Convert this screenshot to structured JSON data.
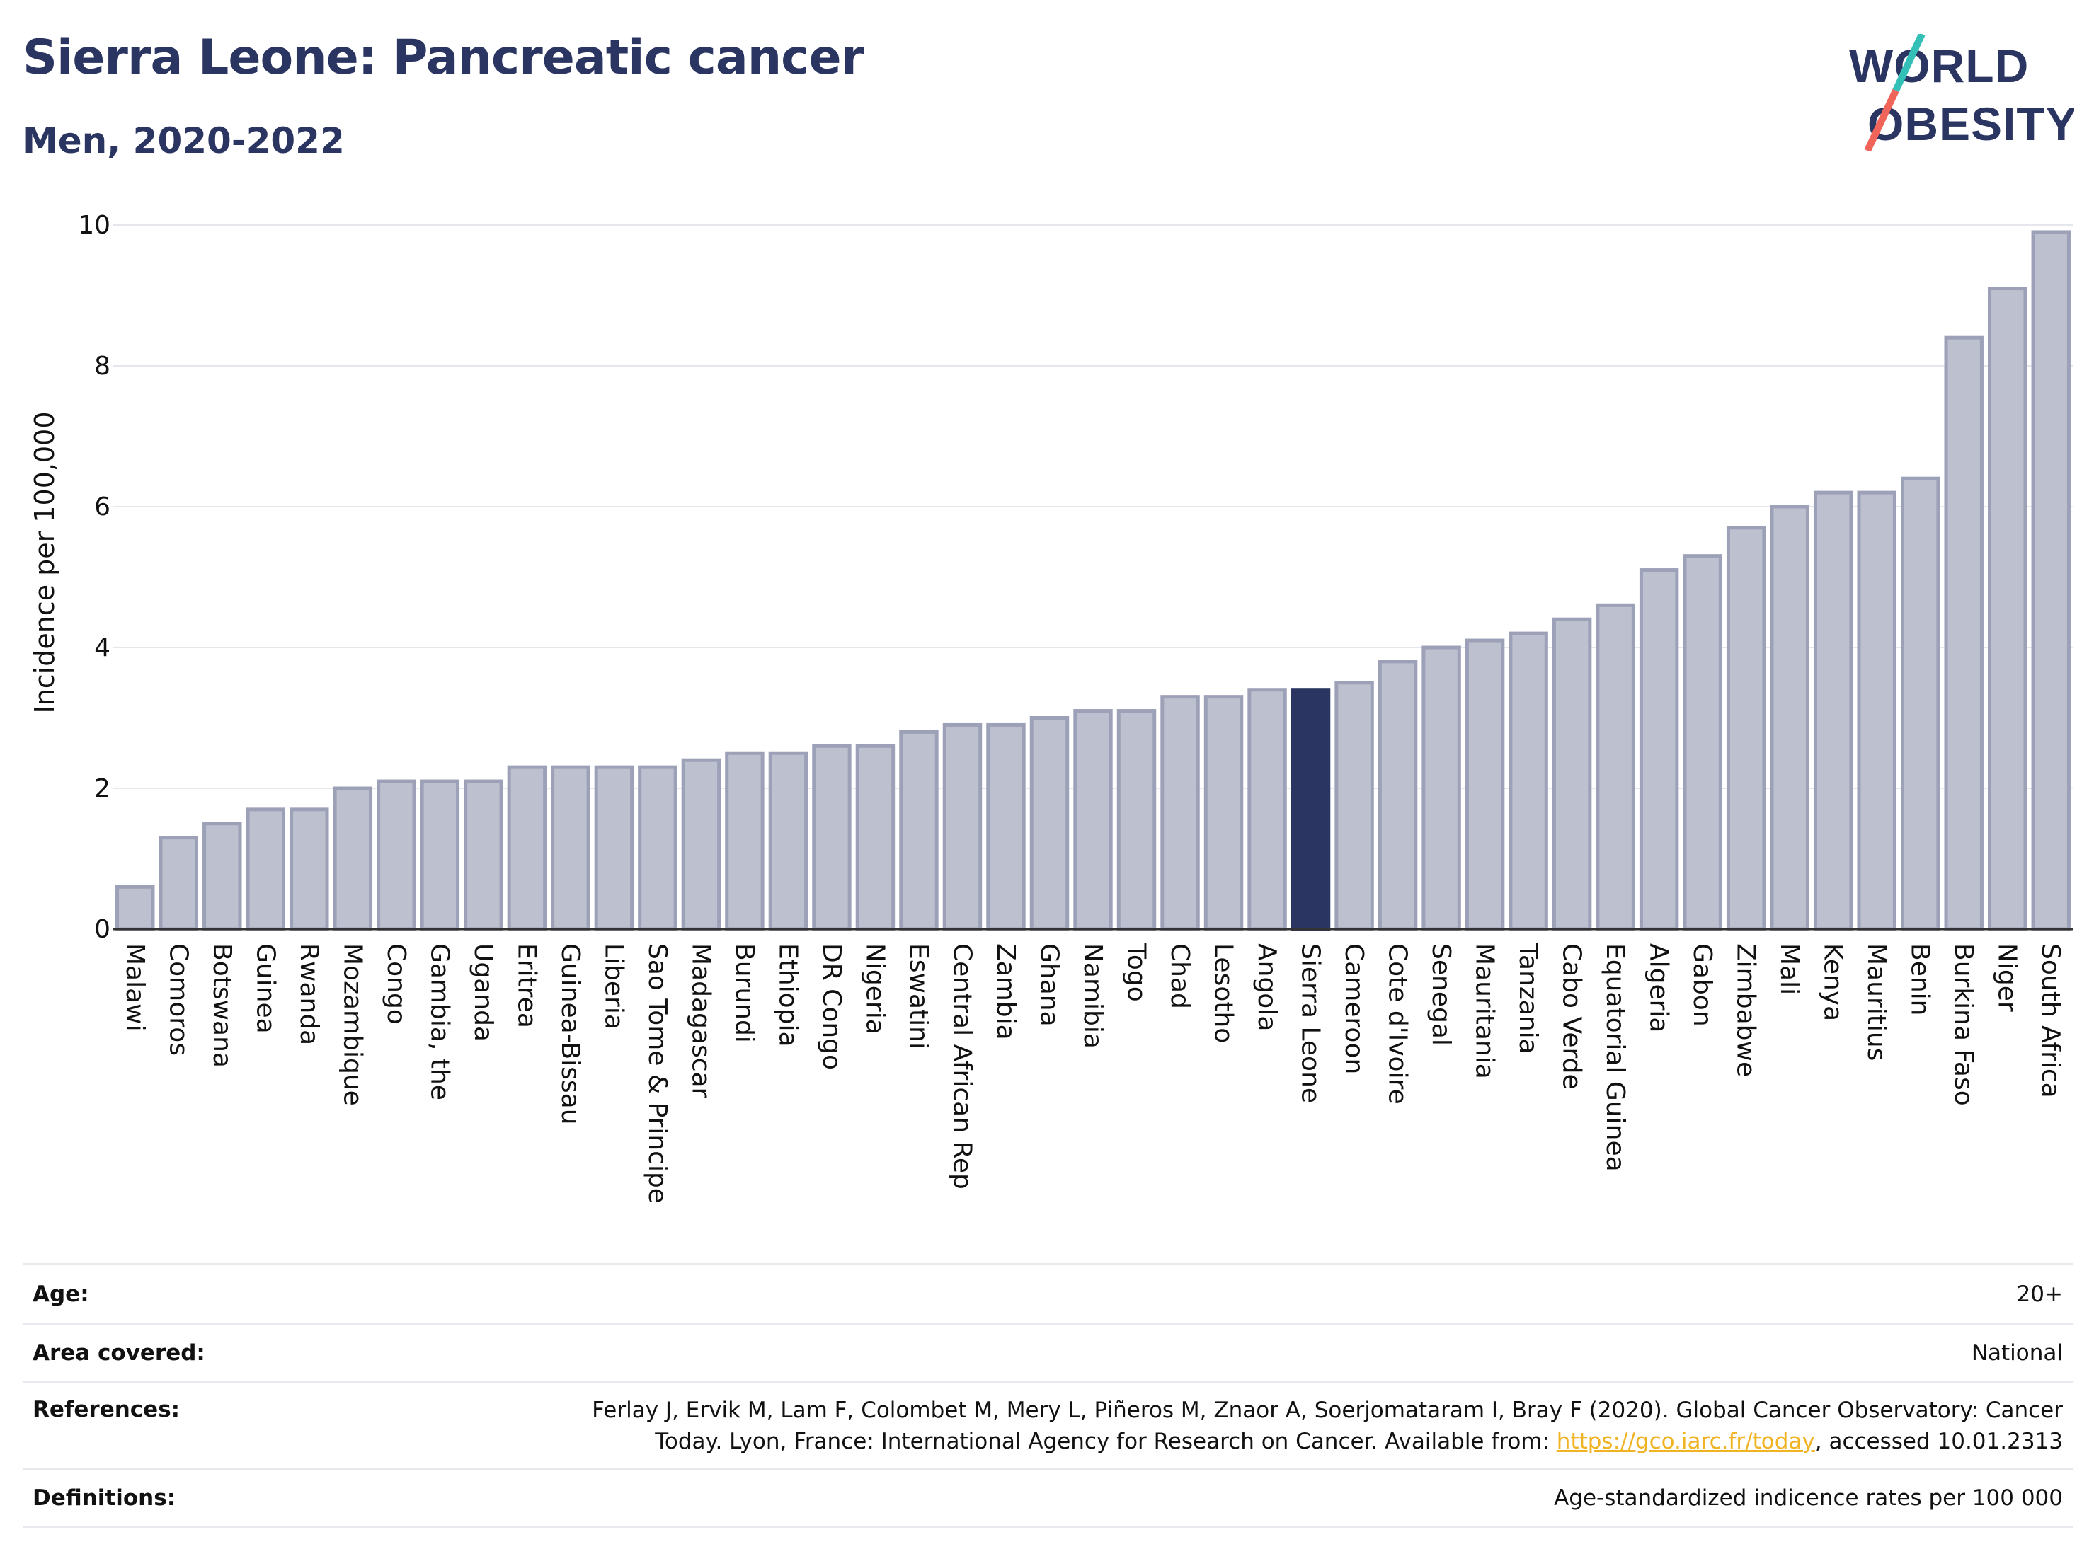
{
  "header": {
    "title": "Sierra Leone: Pancreatic cancer",
    "subtitle": "Men, 2020-2022"
  },
  "logo": {
    "line1": "WORLD",
    "line2": "OBESITY"
  },
  "colors": {
    "bar": "#bdc0cf",
    "bar_stroke": "#9da1b8",
    "highlight": "#2b3561",
    "title": "#2b3561",
    "grid": "#e6e7ec",
    "link": "#f0b323"
  },
  "chart_data": {
    "type": "bar",
    "ylabel": "Incidence per 100,000",
    "ylim": [
      0,
      10
    ],
    "yticks": [
      0,
      2,
      4,
      6,
      8,
      10
    ],
    "grid": true,
    "highlight": "Sierra Leone",
    "categories": [
      "Malawi",
      "Comoros",
      "Botswana",
      "Guinea",
      "Rwanda",
      "Mozambique",
      "Congo",
      "Gambia, the",
      "Uganda",
      "Eritrea",
      "Guinea-Bissau",
      "Liberia",
      "Sao Tome & Principe",
      "Madagascar",
      "Burundi",
      "Ethiopia",
      "DR Congo",
      "Nigeria",
      "Eswatini",
      "Central African Rep",
      "Zambia",
      "Ghana",
      "Namibia",
      "Togo",
      "Chad",
      "Lesotho",
      "Angola",
      "Sierra Leone",
      "Cameroon",
      "Cote d'Ivoire",
      "Senegal",
      "Mauritania",
      "Tanzania",
      "Cabo Verde",
      "Equatorial Guinea",
      "Algeria",
      "Gabon",
      "Zimbabwe",
      "Mali",
      "Kenya",
      "Mauritius",
      "Benin",
      "Burkina Faso",
      "Niger",
      "South Africa"
    ],
    "values": [
      0.6,
      1.3,
      1.5,
      1.7,
      1.7,
      2.0,
      2.1,
      2.1,
      2.1,
      2.3,
      2.3,
      2.3,
      2.3,
      2.4,
      2.5,
      2.5,
      2.6,
      2.6,
      2.8,
      2.9,
      2.9,
      3.0,
      3.1,
      3.1,
      3.3,
      3.3,
      3.4,
      3.4,
      3.5,
      3.8,
      4.0,
      4.1,
      4.2,
      4.4,
      4.6,
      5.1,
      5.3,
      5.7,
      6.0,
      6.2,
      6.2,
      6.4,
      8.4,
      9.1,
      9.9
    ]
  },
  "footer": {
    "age_label": "Age:",
    "age_value": "20+",
    "area_label": "Area covered:",
    "area_value": "National",
    "references_label": "References:",
    "references_text_1": "Ferlay J, Ervik M, Lam F, Colombet M, Mery L, Piñeros M, Znaor A, Soerjomataram I, Bray F (2020). Global Cancer Observatory: Cancer Today. Lyon, France: International Agency for Research on Cancer. Available from: ",
    "references_link": "https://gco.iarc.fr/today",
    "references_text_2": ", accessed 10.01.2313",
    "definitions_label": "Definitions:",
    "definitions_value": "Age-standardized indicence rates per 100 000"
  }
}
